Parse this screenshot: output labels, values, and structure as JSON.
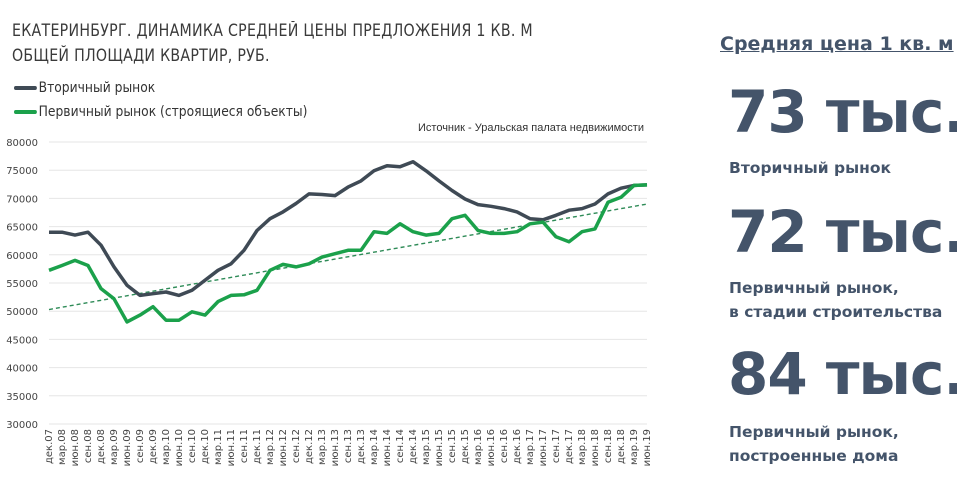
{
  "chart_data": {
    "type": "line",
    "title": "ЕКАТЕРИНБУРГ. ДИНАМИКА СРЕДНЕЙ ЦЕНЫ ПРЕДЛОЖЕНИЯ 1 КВ. М ОБЩЕЙ ПЛОЩАДИ КВАРТИР,  РУБ.",
    "title_lines": [
      "ЕКАТЕРИНБУРГ. ДИНАМИКА СРЕДНЕЙ ЦЕНЫ ПРЕДЛОЖЕНИЯ 1 КВ. М",
      "ОБЩЕЙ ПЛОЩАДИ КВАРТИР,  РУБ."
    ],
    "source": "Источник - Уральская палата недвижимости",
    "xlabel": "",
    "ylabel": "",
    "ylim": [
      30000,
      80000
    ],
    "yticks": [
      30000,
      35000,
      40000,
      45000,
      50000,
      55000,
      60000,
      65000,
      70000,
      75000,
      80000
    ],
    "grid": true,
    "legend_position": "top-left",
    "categories": [
      "дек.07",
      "мар.08",
      "июн.08",
      "сен.08",
      "дек.08",
      "мар.09",
      "июн.09",
      "сен.09",
      "дек.09",
      "мар.10",
      "июн.10",
      "сен.10",
      "дек.10",
      "мар.11",
      "июн.11",
      "сен.11",
      "дек.11",
      "мар.12",
      "июн.12",
      "сен.12",
      "дек.12",
      "мар.13",
      "июн.13",
      "сен.13",
      "дек.13",
      "мар.14",
      "июн.14",
      "сен.14",
      "дек.14",
      "мар.15",
      "июн.15",
      "сен.15",
      "дек.15",
      "мар.16",
      "июн.16",
      "сен.16",
      "дек.16",
      "мар.17",
      "июн.17",
      "сен.17",
      "дек.17",
      "мар.18",
      "июн.18",
      "сен.18",
      "дек.18",
      "мар.19",
      "июн.19"
    ],
    "series": [
      {
        "name": "Вторичный рынок",
        "color": "#3f4a55",
        "values": [
          64000,
          64000,
          63500,
          64000,
          61700,
          57850,
          54600,
          52800,
          53100,
          53400,
          52800,
          53700,
          55500,
          57250,
          58400,
          60800,
          64300,
          66400,
          67600,
          69100,
          70800,
          70700,
          70500,
          72000,
          73100,
          74900,
          75800,
          75600,
          76500,
          74900,
          73100,
          71400,
          69900,
          68900,
          68600,
          68200,
          67600,
          66400,
          66200,
          67000,
          67900,
          68200,
          69000,
          70800,
          71800,
          72300,
          72400
        ]
      },
      {
        "name": "Первичный рынок (строящиеся объекты)",
        "color": "#1ba14b",
        "values": [
          57250,
          58100,
          59000,
          58100,
          54000,
          52200,
          48100,
          49300,
          50800,
          48400,
          48400,
          49900,
          49300,
          51700,
          52800,
          52900,
          53700,
          57250,
          58300,
          57850,
          58400,
          59600,
          60200,
          60800,
          60800,
          64100,
          63800,
          65500,
          64100,
          63500,
          63800,
          66400,
          67000,
          64300,
          63800,
          63800,
          64100,
          65500,
          65800,
          63200,
          62300,
          64100,
          64600,
          69300,
          70200,
          72300,
          72400
        ]
      }
    ],
    "trendline": {
      "series": "Первичный рынок (строящиеся объекты)",
      "style": "dashed",
      "color": "#2e8b57",
      "start": 50300,
      "end": 69000
    }
  },
  "panel": {
    "title": "Средняя цена 1 кв. м",
    "color": "#44546a",
    "items": [
      {
        "value": "73 тыс.",
        "caption": [
          "Вторичный рынок"
        ]
      },
      {
        "value": "72 тыс.",
        "caption": [
          "Первичный рынок,",
          "в стадии строительства"
        ]
      },
      {
        "value": "84 тыс.",
        "caption": [
          "Первичный рынок,",
          "построенные дома"
        ]
      }
    ]
  }
}
